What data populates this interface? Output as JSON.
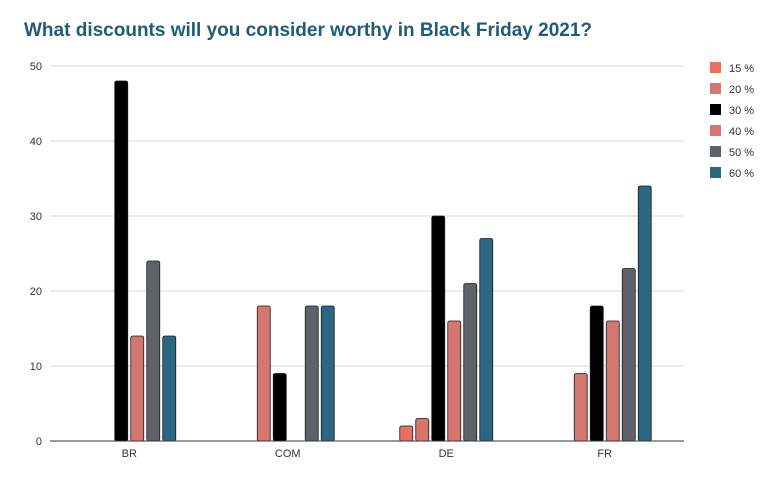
{
  "chart_data": {
    "type": "bar",
    "title": "What discounts will you consider worthy in Black Friday 2021?",
    "xlabel": "",
    "ylabel": "",
    "categories": [
      "BR",
      "COM",
      "DE",
      "FR"
    ],
    "series": [
      {
        "name": "15 %",
        "color": "#e86f61",
        "values": [
          0,
          0,
          2,
          0
        ]
      },
      {
        "name": "20 %",
        "color": "#d4776f",
        "values": [
          0,
          18,
          3,
          9
        ]
      },
      {
        "name": "30 %",
        "color": "#000000",
        "values": [
          48,
          9,
          30,
          18
        ]
      },
      {
        "name": "40 %",
        "color": "#d4776f",
        "values": [
          14,
          0,
          16,
          16
        ]
      },
      {
        "name": "50 %",
        "color": "#5f6369",
        "values": [
          24,
          18,
          21,
          23
        ]
      },
      {
        "name": "60 %",
        "color": "#2b6683",
        "values": [
          14,
          18,
          27,
          34
        ]
      }
    ],
    "ylim": [
      0,
      50
    ],
    "yticks": [
      0,
      10,
      20,
      30,
      40,
      50
    ],
    "grid": true,
    "legend_position": "right"
  }
}
